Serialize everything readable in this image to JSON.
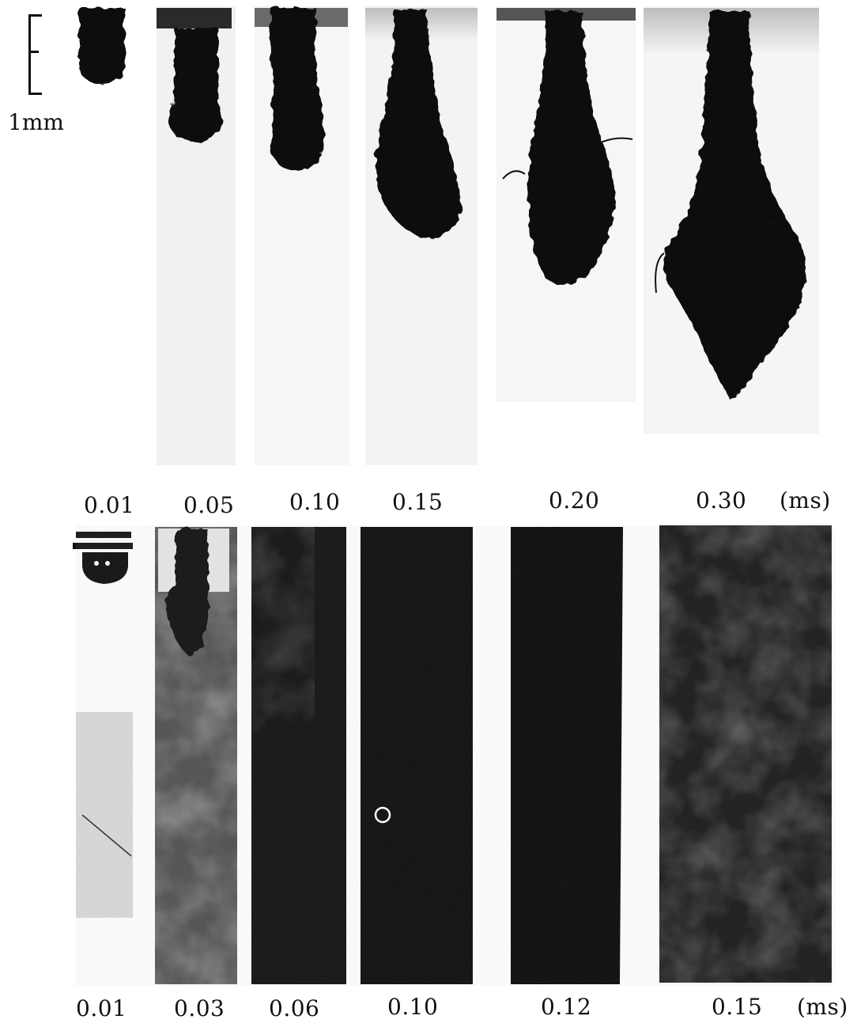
{
  "scale": {
    "label": "1mm"
  },
  "row1": {
    "times": [
      "0.01",
      "0.05",
      "0.10",
      "0.15",
      "0.20",
      "0.30"
    ],
    "unit": "(ms)"
  },
  "row2": {
    "times": [
      "0.01",
      "0.03",
      "0.06",
      "0.10",
      "0.12",
      "0.15"
    ],
    "unit": "(ms)"
  },
  "colors": {
    "background": "#ffffff",
    "spray": "#0a0a0a",
    "film_gray": "#5a5a5a"
  }
}
